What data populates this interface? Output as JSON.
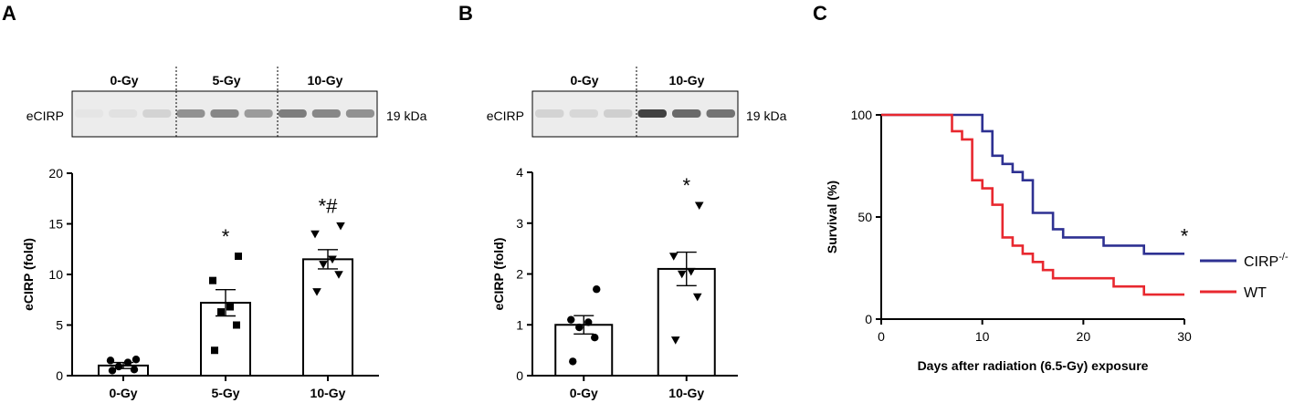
{
  "panels": {
    "A": {
      "letter": "A",
      "blot": {
        "lanes": [
          "0-Gy",
          "5-Gy",
          "10-Gy"
        ],
        "protein": "eCIRP",
        "size": "19 kDa",
        "band_intensity": [
          [
            0.03,
            0.05,
            0.12
          ],
          [
            0.45,
            0.5,
            0.4
          ],
          [
            0.55,
            0.5,
            0.45
          ]
        ]
      }
    },
    "B": {
      "letter": "B",
      "blot": {
        "lanes": [
          "0-Gy",
          "10-Gy"
        ],
        "protein": "eCIRP",
        "size": "19 kDa",
        "band_intensity": [
          [
            0.12,
            0.1,
            0.14
          ],
          [
            0.85,
            0.65,
            0.6
          ]
        ]
      }
    },
    "C": {
      "letter": "C"
    }
  },
  "chart_data": [
    {
      "panel": "A",
      "type": "bar",
      "categories": [
        "0-Gy",
        "5-Gy",
        "10-Gy"
      ],
      "values": [
        1.0,
        7.2,
        11.5
      ],
      "error": [
        0.3,
        1.3,
        0.95
      ],
      "points": [
        [
          0.5,
          0.6,
          0.9,
          1.3,
          1.5,
          1.6
        ],
        [
          2.5,
          5.0,
          6.3,
          6.8,
          9.4,
          11.8
        ],
        [
          8.3,
          10.0,
          11.0,
          11.5,
          14.0,
          14.8
        ]
      ],
      "markers": [
        "circle",
        "square",
        "triangle-down"
      ],
      "significance": [
        "",
        "*",
        "*#"
      ],
      "ylabel": "eCIRP (fold)",
      "ylim": [
        0,
        20
      ],
      "yticks": [
        0,
        5,
        10,
        15,
        20
      ]
    },
    {
      "panel": "B",
      "type": "bar",
      "categories": [
        "0-Gy",
        "10-Gy"
      ],
      "values": [
        1.0,
        2.1
      ],
      "error": [
        0.18,
        0.33
      ],
      "points": [
        [
          0.28,
          0.75,
          0.95,
          1.05,
          1.1,
          1.7
        ],
        [
          0.7,
          1.55,
          2.0,
          2.05,
          2.35,
          3.35
        ]
      ],
      "markers": [
        "circle",
        "triangle-down"
      ],
      "significance": [
        "",
        "*"
      ],
      "ylabel": "eCIRP (fold)",
      "ylim": [
        0,
        4
      ],
      "yticks": [
        0,
        1,
        2,
        3,
        4
      ]
    },
    {
      "panel": "C",
      "type": "line",
      "step": true,
      "series": [
        {
          "name": "CIRP",
          "superscript": "-/-",
          "color": "#2e3192",
          "points": [
            [
              0,
              100
            ],
            [
              10,
              100
            ],
            [
              10,
              92
            ],
            [
              11,
              92
            ],
            [
              11,
              80
            ],
            [
              12,
              80
            ],
            [
              12,
              76
            ],
            [
              13,
              76
            ],
            [
              13,
              72
            ],
            [
              14,
              72
            ],
            [
              14,
              68
            ],
            [
              15,
              68
            ],
            [
              15,
              52
            ],
            [
              17,
              52
            ],
            [
              17,
              44
            ],
            [
              18,
              44
            ],
            [
              18,
              40
            ],
            [
              22,
              40
            ],
            [
              22,
              36
            ],
            [
              26,
              36
            ],
            [
              26,
              32
            ],
            [
              30,
              32
            ]
          ]
        },
        {
          "name": "WT",
          "color": "#e8282f",
          "points": [
            [
              0,
              100
            ],
            [
              7,
              100
            ],
            [
              7,
              92
            ],
            [
              8,
              92
            ],
            [
              8,
              88
            ],
            [
              9,
              88
            ],
            [
              9,
              68
            ],
            [
              10,
              68
            ],
            [
              10,
              64
            ],
            [
              11,
              64
            ],
            [
              11,
              56
            ],
            [
              12,
              56
            ],
            [
              12,
              40
            ],
            [
              13,
              40
            ],
            [
              13,
              36
            ],
            [
              14,
              36
            ],
            [
              14,
              32
            ],
            [
              15,
              32
            ],
            [
              15,
              28
            ],
            [
              16,
              28
            ],
            [
              16,
              24
            ],
            [
              17,
              24
            ],
            [
              17,
              20
            ],
            [
              23,
              20
            ],
            [
              23,
              16
            ],
            [
              26,
              16
            ],
            [
              26,
              12
            ],
            [
              30,
              12
            ]
          ]
        }
      ],
      "significance": "*",
      "xlabel": "Days after radiation (6.5-Gy) exposure",
      "ylabel": "Survival (%)",
      "xlim": [
        0,
        30
      ],
      "ylim": [
        0,
        100
      ],
      "xticks": [
        0,
        10,
        20,
        30
      ],
      "yticks": [
        0,
        50,
        100
      ],
      "legend_position": "right"
    }
  ]
}
